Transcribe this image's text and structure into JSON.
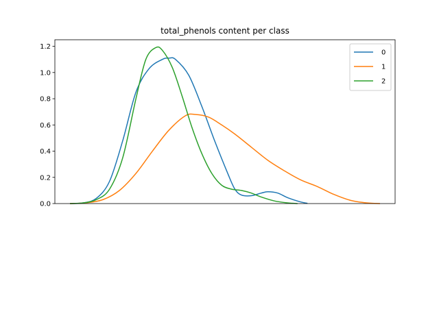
{
  "chart_data": {
    "type": "line",
    "title": "total_phenols content per class",
    "xlabel": "",
    "ylabel": "",
    "ylim": [
      0,
      1.25
    ],
    "x_ticks_shown": false,
    "grid": false,
    "legend_position": "top-right",
    "yticks": [
      "0.0",
      "0.2",
      "0.4",
      "0.6",
      "0.8",
      "1.0",
      "1.2"
    ],
    "series": [
      {
        "name": "0",
        "color": "#1f77b4",
        "points": [
          [
            0.0,
            0.0
          ],
          [
            0.04,
            0.005
          ],
          [
            0.08,
            0.04
          ],
          [
            0.12,
            0.17
          ],
          [
            0.16,
            0.48
          ],
          [
            0.2,
            0.85
          ],
          [
            0.24,
            1.03
          ],
          [
            0.28,
            1.1
          ],
          [
            0.3,
            1.11
          ],
          [
            0.32,
            1.1
          ],
          [
            0.36,
            0.98
          ],
          [
            0.4,
            0.74
          ],
          [
            0.44,
            0.47
          ],
          [
            0.48,
            0.22
          ],
          [
            0.5,
            0.11
          ],
          [
            0.52,
            0.065
          ],
          [
            0.55,
            0.06
          ],
          [
            0.58,
            0.08
          ],
          [
            0.6,
            0.09
          ],
          [
            0.63,
            0.08
          ],
          [
            0.66,
            0.045
          ],
          [
            0.7,
            0.012
          ],
          [
            0.72,
            0.002
          ]
        ]
      },
      {
        "name": "1",
        "color": "#ff7f0e",
        "points": [
          [
            0.0,
            0.0
          ],
          [
            0.05,
            0.006
          ],
          [
            0.1,
            0.03
          ],
          [
            0.15,
            0.1
          ],
          [
            0.2,
            0.23
          ],
          [
            0.25,
            0.4
          ],
          [
            0.3,
            0.56
          ],
          [
            0.35,
            0.67
          ],
          [
            0.38,
            0.68
          ],
          [
            0.42,
            0.66
          ],
          [
            0.46,
            0.6
          ],
          [
            0.5,
            0.53
          ],
          [
            0.55,
            0.43
          ],
          [
            0.6,
            0.33
          ],
          [
            0.65,
            0.25
          ],
          [
            0.7,
            0.18
          ],
          [
            0.75,
            0.13
          ],
          [
            0.8,
            0.07
          ],
          [
            0.85,
            0.025
          ],
          [
            0.9,
            0.005
          ],
          [
            0.94,
            0.0
          ]
        ]
      },
      {
        "name": "2",
        "color": "#2ca02c",
        "points": [
          [
            0.0,
            0.0
          ],
          [
            0.04,
            0.005
          ],
          [
            0.08,
            0.03
          ],
          [
            0.12,
            0.11
          ],
          [
            0.16,
            0.35
          ],
          [
            0.2,
            0.8
          ],
          [
            0.23,
            1.1
          ],
          [
            0.26,
            1.19
          ],
          [
            0.28,
            1.17
          ],
          [
            0.31,
            1.04
          ],
          [
            0.34,
            0.82
          ],
          [
            0.37,
            0.58
          ],
          [
            0.4,
            0.38
          ],
          [
            0.43,
            0.23
          ],
          [
            0.46,
            0.14
          ],
          [
            0.49,
            0.11
          ],
          [
            0.52,
            0.1
          ],
          [
            0.55,
            0.08
          ],
          [
            0.58,
            0.05
          ],
          [
            0.62,
            0.02
          ],
          [
            0.66,
            0.005
          ],
          [
            0.69,
            0.0
          ]
        ]
      }
    ]
  }
}
